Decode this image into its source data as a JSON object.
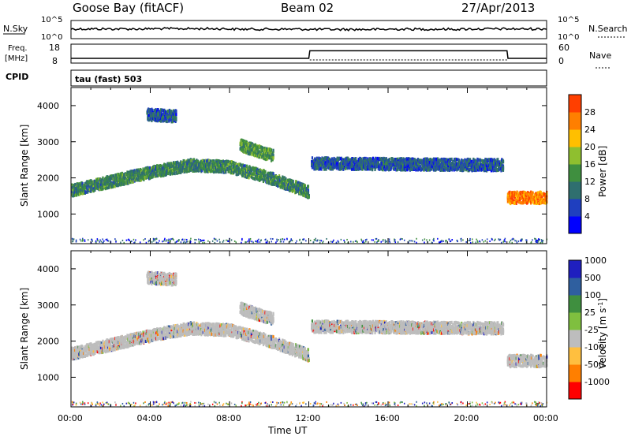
{
  "header": {
    "station": "Goose Bay (fitACF)",
    "beam": "Beam 02",
    "date": "27/Apr/2013"
  },
  "top_panels": {
    "nsky_label": "N.Sky",
    "nsky_ticks": [
      "10^5",
      "10^0"
    ],
    "nsearch_label": "N.Search",
    "nsearch_ticks": [
      "10^5",
      "10^0"
    ],
    "freq_label": "Freq.",
    "freq_unit": "[MHz]",
    "freq_ticks": [
      "18",
      "8"
    ],
    "nave_label": "Nave",
    "nave_ticks": [
      "60",
      "0"
    ],
    "cpid_label": "CPID",
    "cpid_value": "tau (fast) 503"
  },
  "colors": {
    "power_scale": [
      "#0000ff",
      "#1f3fbf",
      "#2f6f6f",
      "#3f8f3f",
      "#8fbf2f",
      "#ffbf00",
      "#ff7f00",
      "#ff3f00",
      "#ff0000"
    ],
    "velocity_scale": [
      "#ff0000",
      "#ff7f00",
      "#ffbf3f",
      "#bdbdbd",
      "#7fbf3f",
      "#3f8f3f",
      "#2f5f9f",
      "#1f1fbf"
    ],
    "ground_scatter": "#bdbdbd",
    "line": "#000000"
  },
  "chart_data": [
    {
      "type": "line",
      "title": "N.Sky / N.Search",
      "x": [
        "00:00",
        "04:00",
        "08:00",
        "12:00",
        "16:00",
        "20:00",
        "00:00"
      ],
      "series": [
        {
          "name": "N.Sky",
          "values_log10": [
            3.1,
            3.2,
            3.0,
            2.9,
            3.0,
            3.1,
            3.4
          ]
        }
      ],
      "ylim": [
        0,
        5
      ]
    },
    {
      "type": "line",
      "title": "Freq. [MHz] / Nave",
      "x_hours": [
        0,
        12,
        12.05,
        22,
        22.05,
        24
      ],
      "series": [
        {
          "name": "Freq.",
          "values": [
            10.5,
            10.5,
            14.5,
            14.5,
            10.5,
            10.5
          ]
        }
      ],
      "ylim": [
        8,
        18
      ]
    },
    {
      "type": "heatmap",
      "title": "Power [dB]",
      "xlabel": "Time UT",
      "ylabel": "Slant Range [km]",
      "x_ticks": [
        "00:00",
        "04:00",
        "08:00",
        "12:00",
        "16:00",
        "20:00",
        "00:00"
      ],
      "y_ticks": [
        1000,
        2000,
        3000,
        4000
      ],
      "xlim_hours": [
        0,
        24
      ],
      "ylim_km": [
        180,
        4500
      ],
      "colorbar_label": "Power [dB]",
      "colorbar_ticks": [
        4,
        8,
        12,
        16,
        20,
        24,
        28
      ],
      "regions": [
        {
          "t": [
            0,
            12
          ],
          "range_center": [
            1650,
            1900,
            2150,
            2350,
            2300,
            2000,
            1600
          ],
          "value_db": 10
        },
        {
          "t": [
            3.8,
            5.3
          ],
          "range_center": [
            3750,
            3700
          ],
          "value_db": 6
        },
        {
          "t": [
            8.5,
            10.2
          ],
          "range_center": [
            2900,
            2600
          ],
          "value_db": 12
        },
        {
          "t": [
            12.1,
            21.8
          ],
          "range_center": [
            2400,
            2350
          ],
          "value_db": 6
        },
        {
          "t": [
            22,
            24
          ],
          "range_center": [
            1450,
            1450
          ],
          "value_db": 24
        }
      ]
    },
    {
      "type": "heatmap",
      "title": "Velocity [m s^-1]",
      "xlabel": "Time UT",
      "ylabel": "Slant Range [km]",
      "x_ticks": [
        "00:00",
        "04:00",
        "08:00",
        "12:00",
        "16:00",
        "20:00",
        "00:00"
      ],
      "y_ticks": [
        1000,
        2000,
        3000,
        4000
      ],
      "xlim_hours": [
        0,
        24
      ],
      "ylim_km": [
        180,
        4500
      ],
      "colorbar_label": "Velocity [m s^-1]",
      "colorbar_ticks": [
        "1000",
        "500",
        "100",
        "25",
        "-25",
        "-100",
        "-500",
        "-1000"
      ]
    }
  ],
  "axes": {
    "xlabel": "Time UT",
    "ylabel": "Slant Range [km]",
    "power_label": "Power [dB]",
    "velocity_label": "Velocity [m s",
    "velocity_label_sup": "-1",
    "velocity_label_end": "]"
  }
}
